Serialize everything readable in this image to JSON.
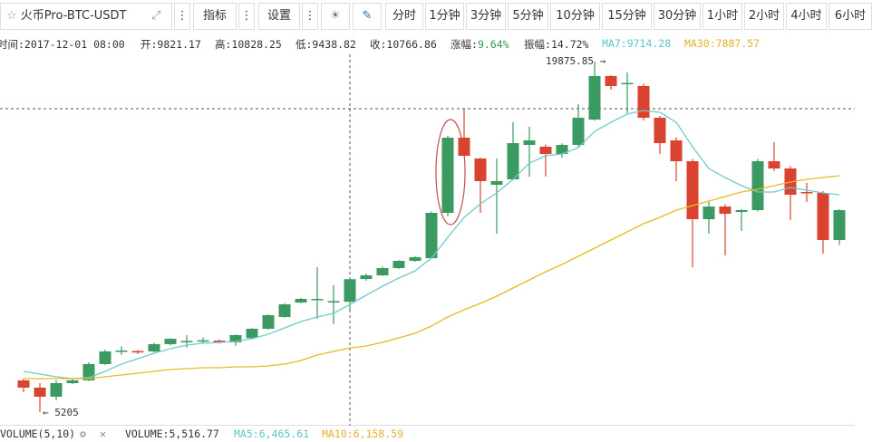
{
  "toolbar": {
    "symbol": "火币Pro-BTC-USDT",
    "indicators": "指标",
    "settings": "设置",
    "intervals": [
      "分时",
      "1分钟",
      "3分钟",
      "5分钟",
      "10分钟",
      "15分钟",
      "30分钟",
      "1小时",
      "2小时",
      "4小时",
      "6小时"
    ]
  },
  "info": {
    "time": "时间:2017-12-01 08:00",
    "open": "开:9821.17",
    "high": "高:10828.25",
    "low": "低:9438.82",
    "close": "收:10766.86",
    "change_label": "涨幅:",
    "change_value": "9.64%",
    "amplitude_label": "振幅:",
    "amplitude_value": "14.72%",
    "ma7": "MA7:9714.28",
    "ma30": "MA30:7887.57"
  },
  "chart_data": {
    "type": "candlestick",
    "open": [
      6532,
      6228,
      5849,
      6418,
      6532,
      7214,
      7760,
      7760,
      7744,
      8048,
      8161,
      8199,
      8199,
      8123,
      8300,
      8692,
      9185,
      9791,
      9900,
      9829,
      9821.17,
      10776,
      10928,
      11231,
      11534,
      11648,
      13543,
      16689,
      15817,
      14718,
      14945,
      16386,
      16310,
      16007,
      16386,
      17447,
      19266,
      18963,
      18849,
      17523,
      16575,
      15703,
      13278,
      13808,
      13581,
      13657,
      15703,
      15400,
      14415,
      14377,
      12406
    ],
    "high": [
      6607,
      6418,
      6532,
      6600,
      7290,
      7820,
      7960,
      7800,
      8100,
      8300,
      8420,
      8330,
      8250,
      8460,
      8720,
      9300,
      9760,
      9980,
      11269,
      10511,
      10828.25,
      11000,
      11300,
      11560,
      11720,
      13600,
      16765,
      17902,
      15850,
      15817,
      17333,
      17144,
      16400,
      16450,
      18090,
      19875.85,
      19300,
      19418,
      18950,
      17600,
      16700,
      15800,
      14000,
      13900,
      13700,
      15800,
      16499,
      15500,
      14800,
      14450,
      13700
    ],
    "low": [
      6040,
      5205,
      5700,
      6380,
      6500,
      7180,
      7600,
      7640,
      7700,
      8000,
      7900,
      8100,
      8080,
      7980,
      8280,
      8650,
      9150,
      9760,
      9109,
      8881,
      9438.82,
      10700,
      10900,
      11200,
      11500,
      11620,
      13400,
      15900,
      13543,
      12671,
      14900,
      15060,
      15060,
      15850,
      16300,
      17400,
      18700,
      17712,
      17400,
      16000,
      14870,
      11269,
      12671,
      11762,
      12785,
      13600,
      15300,
      13240,
      14000,
      11838,
      12200
    ],
    "close": [
      6228,
      5849,
      6418,
      6532,
      7214,
      7744,
      7782,
      7700,
      8048,
      8275,
      8180,
      8210,
      8123,
      8427,
      8692,
      9260,
      9715,
      9943,
      9943,
      9850,
      10766.86,
      10928,
      11231,
      11534,
      11686,
      13543,
      16689,
      15931,
      14870,
      14870,
      16461,
      16575,
      16007,
      16386,
      17523,
      19266,
      18849,
      18980,
      17523,
      16461,
      15703,
      13278,
      13808,
      13505,
      13657,
      15703,
      15400,
      14301,
      14377,
      12406,
      13657
    ],
    "up_color": "#3a9a62",
    "down_color": "#d9432f",
    "ma_lines": [
      {
        "color": "#6fcbcb",
        "values": [
          6911,
          6797,
          6683,
          6607,
          6645,
          6911,
          7214,
          7441,
          7669,
          7858,
          8010,
          8085,
          8123,
          8161,
          8275,
          8464,
          8730,
          8995,
          9185,
          9336,
          9714.28,
          10094,
          10473,
          10814,
          11117,
          11648,
          12520,
          13354,
          13922,
          14377,
          14945,
          15628,
          15931,
          16007,
          16272,
          16954,
          17333,
          17674,
          17826,
          17750,
          17333,
          16310,
          15400,
          15021,
          14680,
          14415,
          14415,
          14604,
          14491,
          14377,
          14301
        ]
      },
      {
        "color": "#e8b923",
        "values": [
          6607,
          6607,
          6607,
          6607,
          6607,
          6683,
          6759,
          6835,
          6911,
          6986,
          7024,
          7062,
          7062,
          7100,
          7100,
          7138,
          7214,
          7365,
          7593,
          7744,
          7887.57,
          7972,
          8123,
          8313,
          8502,
          8806,
          9185,
          9488,
          9753,
          10056,
          10397,
          10738,
          11080,
          11383,
          11724,
          12065,
          12406,
          12747,
          13088,
          13354,
          13657,
          13846,
          14036,
          14225,
          14415,
          14528,
          14680,
          14832,
          14945,
          15021,
          15097
        ]
      }
    ],
    "ylim": [
      4636,
      20176
    ],
    "annotations": [
      "19875.85 →",
      "← 5205"
    ]
  },
  "volume_bar": {
    "title": "VOLUME(5,10)",
    "volume": "VOLUME:5,516.77",
    "ma5": "MA5:6,465.61",
    "ma10": "MA10:6,158.59"
  }
}
